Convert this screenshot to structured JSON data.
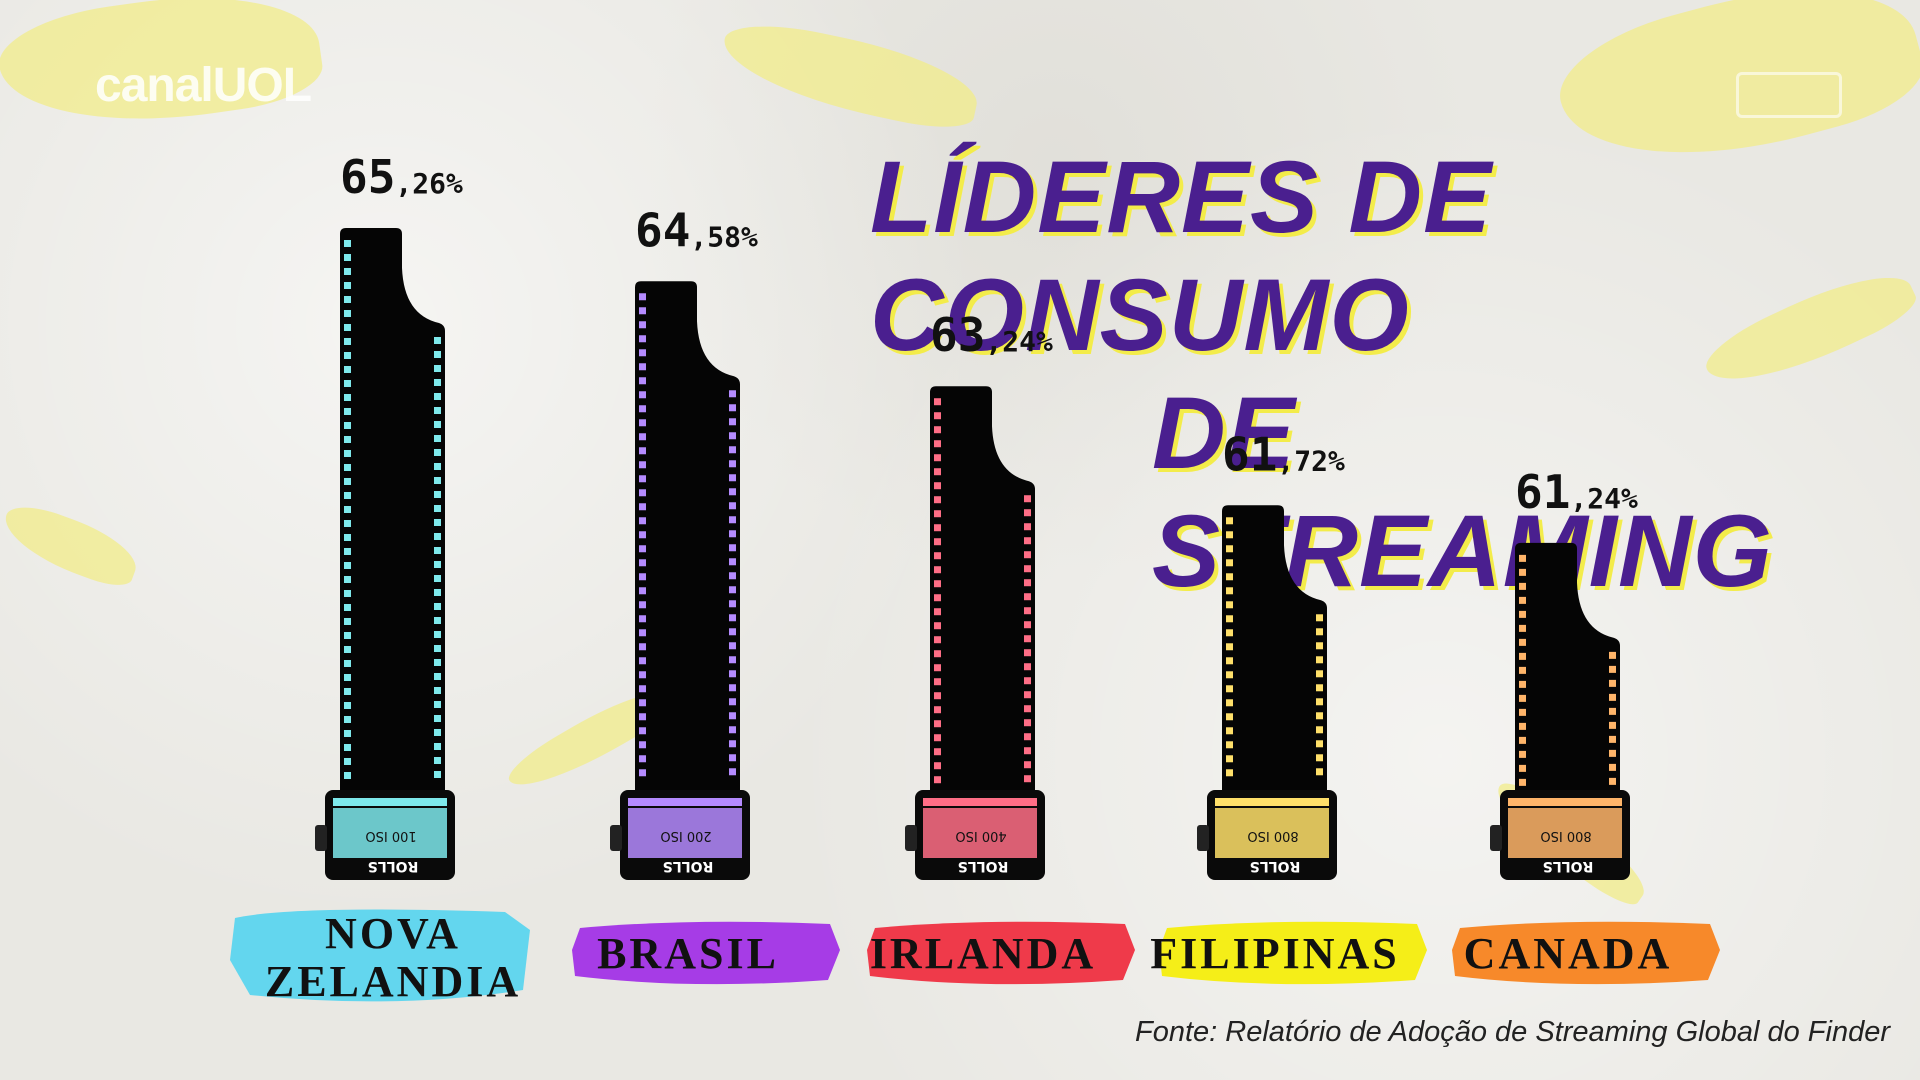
{
  "brand": {
    "logo_text": "canalUOL"
  },
  "title_lines": [
    "LÍDERES DE CONSUMO",
    "DE STREAMING"
  ],
  "source": "Fonte: Relatório de Adoção de Streaming Global do Finder",
  "film_label": "ROLLS",
  "chart_data": {
    "type": "bar",
    "title": "LÍDERES DE CONSUMO DE STREAMING",
    "categories": [
      "NOVA ZELANDIA",
      "BRASIL",
      "IRLANDA",
      "FILIPINAS",
      "CANADA"
    ],
    "values": [
      65.26,
      64.58,
      63.24,
      61.72,
      61.24
    ],
    "value_labels": [
      "65,26%",
      "64,58%",
      "63,24%",
      "61,72%",
      "61,24%"
    ],
    "film_iso": [
      "100 ISO",
      "200 ISO",
      "400 ISO",
      "800 ISO",
      "800 ISO"
    ],
    "colors": {
      "strip": [
        "#7ee9ec",
        "#b58bff",
        "#ff6e86",
        "#ffe06a",
        "#ffb56a"
      ],
      "label_bg": [
        "#63d6ee",
        "#a63ce6",
        "#ef3a4a",
        "#f5ee18",
        "#f7892a"
      ]
    }
  }
}
